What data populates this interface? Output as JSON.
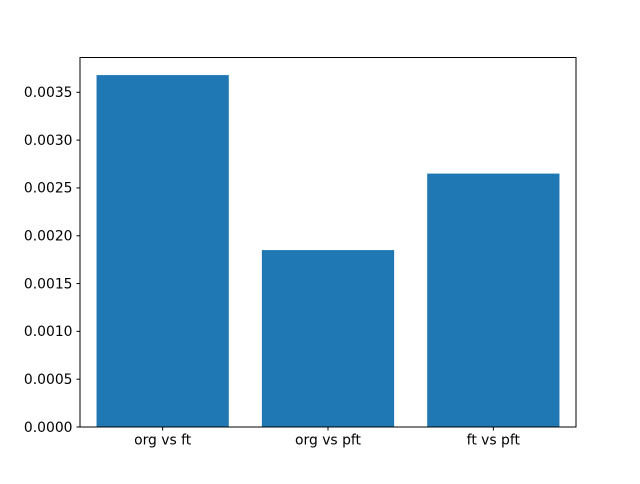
{
  "chart_data": {
    "type": "bar",
    "title": "",
    "xlabel": "",
    "ylabel": "",
    "categories": [
      "org vs ft",
      "org vs pft",
      "ft vs pft"
    ],
    "values": [
      0.00368,
      0.00185,
      0.00265
    ],
    "ylim": [
      0,
      0.003864
    ],
    "yticks": [
      0.0,
      0.0005,
      0.001,
      0.0015,
      0.002,
      0.0025,
      0.003,
      0.0035
    ],
    "ytick_labels": [
      "0.0000",
      "0.0005",
      "0.0010",
      "0.0015",
      "0.0020",
      "0.0025",
      "0.0030",
      "0.0035"
    ],
    "bar_width_fraction": 0.8,
    "bar_color": "#1f77b4",
    "axes_edge_color": "#000000",
    "background_color": "#ffffff",
    "grid": false,
    "legend": null
  }
}
